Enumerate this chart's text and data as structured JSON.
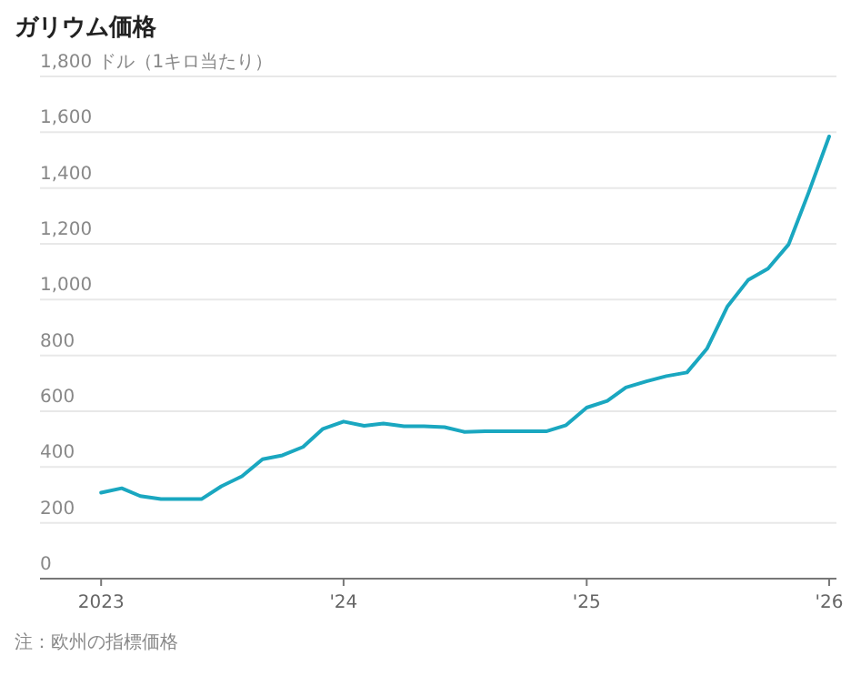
{
  "chart_data": {
    "type": "line",
    "title": "ガリウム価格",
    "x": [
      "2023-01",
      "2023-02",
      "2023-03",
      "2023-04",
      "2023-05",
      "2023-06",
      "2023-07",
      "2023-08",
      "2023-09",
      "2023-10",
      "2023-11",
      "2023-12",
      "2024-01",
      "2024-02",
      "2024-03",
      "2024-04",
      "2024-05",
      "2024-06",
      "2024-07",
      "2024-08",
      "2024-09",
      "2024-10",
      "2024-11",
      "2024-12",
      "2025-01",
      "2025-02",
      "2025-03",
      "2025-04",
      "2025-05",
      "2025-06",
      "2025-07",
      "2025-08",
      "2025-09",
      "2025-10",
      "2025-11",
      "2025-12",
      "2026-01"
    ],
    "series": [
      {
        "color": "#1aa7c0",
        "values": [
          308,
          324,
          296,
          285,
          285,
          285,
          331,
          367,
          428,
          442,
          472,
          537,
          563,
          548,
          556,
          546,
          546,
          543,
          526,
          528,
          528,
          528,
          528,
          550,
          613,
          637,
          685,
          707,
          726,
          739,
          824,
          976,
          1070,
          1111,
          1198,
          1383,
          1585
        ]
      }
    ],
    "xlim": [
      "2022-10",
      "2026-01-12"
    ],
    "xticks": [
      {
        "value": "2023-01",
        "label": "2023"
      },
      {
        "value": "2024-01",
        "label": "'24"
      },
      {
        "value": "2025-01",
        "label": "'25"
      },
      {
        "value": "2026-01",
        "label": "'26"
      }
    ],
    "ylim": [
      0,
      1800
    ],
    "yticks": [
      0,
      {
        "value": 200,
        "label": "200"
      },
      {
        "value": 400,
        "label": "400"
      },
      {
        "value": 600,
        "label": "600"
      },
      {
        "value": 800,
        "label": "800"
      },
      {
        "value": 1000,
        "label": "1,000"
      },
      {
        "value": 1200,
        "label": "1,200"
      },
      {
        "value": 1400,
        "label": "1,400"
      },
      {
        "value": 1600,
        "label": "1,600"
      },
      {
        "value": 1800,
        "label": "1,800 ドル（1キロ当たり）"
      }
    ],
    "grid": "y",
    "marker": "none",
    "line_style": "solid",
    "annotations": [
      "注：欧州の指標価格"
    ]
  }
}
